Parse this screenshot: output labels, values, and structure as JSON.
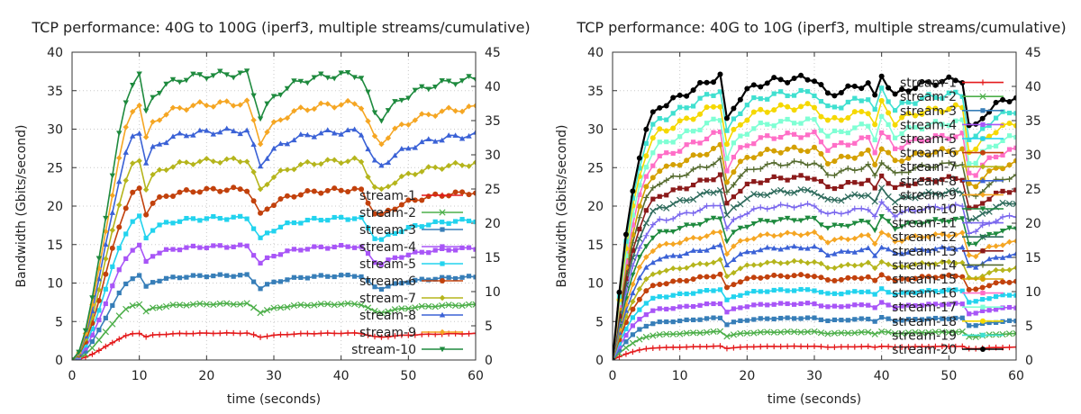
{
  "chart_data": [
    {
      "type": "line",
      "title": "TCP performance: 40G to 100G (iperf3, multiple streams/cumulative)",
      "xlabel": "time (seconds)",
      "ylabel": "Bandwidth (Gbits/second)",
      "xlim": [
        0,
        60
      ],
      "ylim": [
        0,
        40
      ],
      "y2lim": [
        0,
        45
      ],
      "xticks": [
        "0",
        "10",
        "20",
        "30",
        "40",
        "50",
        "60"
      ],
      "yticks": [
        "0",
        "5",
        "10",
        "15",
        "20",
        "25",
        "30",
        "35",
        "40"
      ],
      "y2ticks": [
        "0",
        "5",
        "10",
        "15",
        "20",
        "25",
        "30",
        "35",
        "40",
        "45"
      ],
      "grid": true,
      "legend_position": "bottom-right",
      "x": [
        0,
        1,
        2,
        3,
        4,
        5,
        6,
        7,
        8,
        9,
        10,
        11,
        12,
        13,
        14,
        15,
        16,
        17,
        18,
        19,
        20,
        21,
        22,
        23,
        24,
        25,
        26,
        27,
        28,
        29,
        30,
        31,
        32,
        33,
        34,
        35,
        36,
        37,
        38,
        39,
        40,
        41,
        42,
        43,
        44,
        45,
        46,
        47,
        48,
        49,
        50,
        51,
        52,
        53,
        54,
        55,
        56,
        57,
        58,
        59,
        60
      ],
      "series": [
        {
          "name": "stream-1",
          "color": "#e41a1c",
          "marker": "plus",
          "profile": "a",
          "level": 3.5
        },
        {
          "name": "stream-2",
          "color": "#4daf4a",
          "marker": "x",
          "profile": "a",
          "level": 7.3
        },
        {
          "name": "stream-3",
          "color": "#377eb8",
          "marker": "square",
          "profile": "a",
          "level": 11.0
        },
        {
          "name": "stream-4",
          "color": "#a855f7",
          "marker": "square",
          "profile": "a",
          "level": 14.8
        },
        {
          "name": "stream-5",
          "color": "#22d3ee",
          "marker": "square",
          "profile": "a",
          "level": 18.5
        },
        {
          "name": "stream-6",
          "color": "#c2410c",
          "marker": "circle",
          "profile": "a",
          "level": 22.2
        },
        {
          "name": "stream-7",
          "color": "#b5b51c",
          "marker": "diamond",
          "profile": "a",
          "level": 26.0
        },
        {
          "name": "stream-8",
          "color": "#3b62d6",
          "marker": "triangle",
          "profile": "a",
          "level": 29.8
        },
        {
          "name": "stream-9",
          "color": "#f5a623",
          "marker": "diamond",
          "profile": "a",
          "level": 33.4
        },
        {
          "name": "stream-10",
          "color": "#1e8a3e",
          "marker": "triangle-down",
          "profile": "a",
          "level": 37.2
        }
      ]
    },
    {
      "type": "line",
      "title": "TCP performance: 40G to 10G (iperf3, multiple streams/cumulative)",
      "xlabel": "time (seconds)",
      "ylabel": "Bandwidth (Gbits/second)",
      "xlim": [
        0,
        60
      ],
      "ylim": [
        0,
        40
      ],
      "y2lim": [
        0,
        45
      ],
      "xticks": [
        "0",
        "10",
        "20",
        "30",
        "40",
        "50",
        "60"
      ],
      "yticks": [
        "0",
        "5",
        "10",
        "15",
        "20",
        "25",
        "30",
        "35",
        "40"
      ],
      "y2ticks": [
        "0",
        "5",
        "10",
        "15",
        "20",
        "25",
        "30",
        "35",
        "40",
        "45"
      ],
      "grid": true,
      "legend_position": "bottom-right",
      "x": [
        0,
        1,
        2,
        3,
        4,
        5,
        6,
        7,
        8,
        9,
        10,
        11,
        12,
        13,
        14,
        15,
        16,
        17,
        18,
        19,
        20,
        21,
        22,
        23,
        24,
        25,
        26,
        27,
        28,
        29,
        30,
        31,
        32,
        33,
        34,
        35,
        36,
        37,
        38,
        39,
        40,
        41,
        42,
        43,
        44,
        45,
        46,
        47,
        48,
        49,
        50,
        51,
        52,
        53,
        54,
        55,
        56,
        57,
        58,
        59,
        60
      ],
      "series": [
        {
          "name": "stream-1",
          "color": "#e41a1c",
          "marker": "plus",
          "profile": "b",
          "level": 1.8
        },
        {
          "name": "stream-2",
          "color": "#4daf4a",
          "marker": "x",
          "profile": "b",
          "level": 3.7
        },
        {
          "name": "stream-3",
          "color": "#377eb8",
          "marker": "square",
          "profile": "b",
          "level": 5.5
        },
        {
          "name": "stream-4",
          "color": "#a855f7",
          "marker": "square",
          "profile": "b",
          "level": 7.4
        },
        {
          "name": "stream-5",
          "color": "#22d3ee",
          "marker": "square",
          "profile": "b",
          "level": 9.2
        },
        {
          "name": "stream-6",
          "color": "#c2410c",
          "marker": "circle",
          "profile": "b",
          "level": 11.1
        },
        {
          "name": "stream-7",
          "color": "#b5b51c",
          "marker": "diamond",
          "profile": "b",
          "level": 12.9
        },
        {
          "name": "stream-8",
          "color": "#3b62d6",
          "marker": "triangle",
          "profile": "b",
          "level": 14.8
        },
        {
          "name": "stream-9",
          "color": "#f5a623",
          "marker": "diamond",
          "profile": "b",
          "level": 16.6
        },
        {
          "name": "stream-10",
          "color": "#1e8a3e",
          "marker": "triangle-down",
          "profile": "b",
          "level": 18.5
        },
        {
          "name": "stream-11",
          "color": "#7b68ee",
          "marker": "plus",
          "profile": "b",
          "level": 20.3
        },
        {
          "name": "stream-12",
          "color": "#2e6b5c",
          "marker": "x",
          "profile": "b",
          "level": 22.2
        },
        {
          "name": "stream-13",
          "color": "#8b1a1a",
          "marker": "square",
          "profile": "b",
          "level": 24.0
        },
        {
          "name": "stream-14",
          "color": "#556b2f",
          "marker": "plus",
          "profile": "b",
          "level": 25.9
        },
        {
          "name": "stream-15",
          "color": "#d4a000",
          "marker": "circle",
          "profile": "b",
          "level": 27.7
        },
        {
          "name": "stream-16",
          "color": "#ff6ec7",
          "marker": "square",
          "profile": "b",
          "level": 29.6
        },
        {
          "name": "stream-17",
          "color": "#7fffd4",
          "marker": "square",
          "profile": "b",
          "level": 31.4
        },
        {
          "name": "stream-18",
          "color": "#f5d800",
          "marker": "circle",
          "profile": "b",
          "level": 33.3
        },
        {
          "name": "stream-19",
          "color": "#40e0d0",
          "marker": "square",
          "profile": "b",
          "level": 35.1
        },
        {
          "name": "stream-20",
          "color": "#000000",
          "marker": "circle",
          "profile": "b",
          "level": 37.0
        }
      ]
    }
  ]
}
